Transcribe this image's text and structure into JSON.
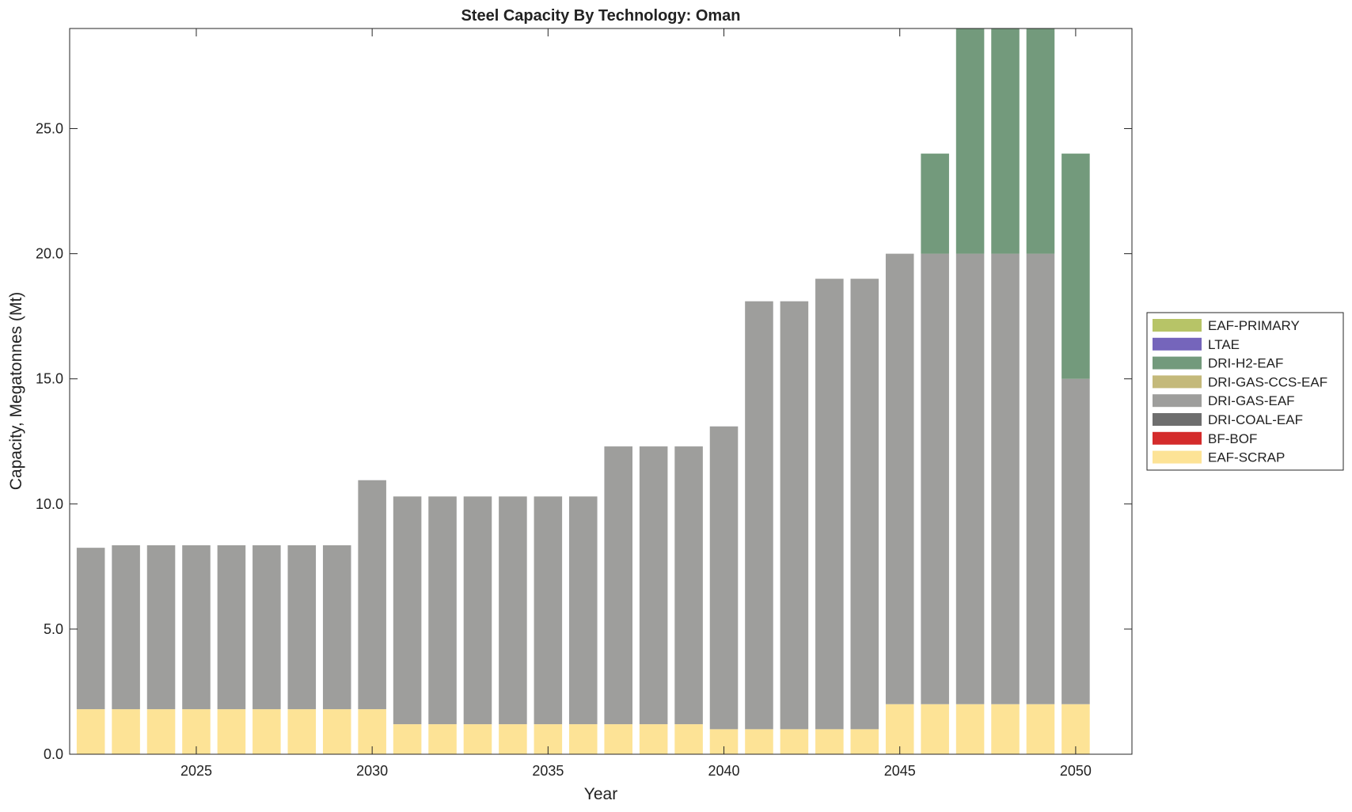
{
  "chart_data": {
    "type": "bar",
    "stacked": true,
    "title": "Steel Capacity By Technology: Oman",
    "xlabel": "Year",
    "ylabel": "Capacity, Megatonnes (Mt)",
    "xlim": [
      2021.4,
      2051.6
    ],
    "ylim": [
      0,
      29
    ],
    "x_ticks": [
      2025,
      2030,
      2035,
      2040,
      2045,
      2050
    ],
    "x_tick_labels": [
      "2025",
      "2030",
      "2035",
      "2040",
      "2045",
      "2050"
    ],
    "y_ticks": [
      0,
      5,
      10,
      15,
      20,
      25
    ],
    "y_tick_labels": [
      "0.0",
      "5.0",
      "10.0",
      "15.0",
      "20.0",
      "25.0"
    ],
    "grid": false,
    "legend_position": "right",
    "categories": [
      2022,
      2023,
      2024,
      2025,
      2026,
      2027,
      2028,
      2029,
      2030,
      2031,
      2032,
      2033,
      2034,
      2035,
      2036,
      2037,
      2038,
      2039,
      2040,
      2041,
      2042,
      2043,
      2044,
      2045,
      2046,
      2047,
      2048,
      2049,
      2050
    ],
    "series": [
      {
        "name": "EAF-SCRAP",
        "color": "#fde396",
        "values": [
          1.8,
          1.8,
          1.8,
          1.8,
          1.8,
          1.8,
          1.8,
          1.8,
          1.8,
          1.2,
          1.2,
          1.2,
          1.2,
          1.2,
          1.2,
          1.2,
          1.2,
          1.2,
          1.0,
          1.0,
          1.0,
          1.0,
          1.0,
          2.0,
          2.0,
          2.0,
          2.0,
          2.0,
          2.0
        ]
      },
      {
        "name": "BF-BOF",
        "color": "#d42b2b",
        "values": [
          0,
          0,
          0,
          0,
          0,
          0,
          0,
          0,
          0,
          0,
          0,
          0,
          0,
          0,
          0,
          0,
          0,
          0,
          0,
          0,
          0,
          0,
          0,
          0,
          0,
          0,
          0,
          0,
          0
        ]
      },
      {
        "name": "DRI-COAL-EAF",
        "color": "#6e6e6e",
        "values": [
          0,
          0,
          0,
          0,
          0,
          0,
          0,
          0,
          0,
          0,
          0,
          0,
          0,
          0,
          0,
          0,
          0,
          0,
          0,
          0,
          0,
          0,
          0,
          0,
          0,
          0,
          0,
          0,
          0
        ]
      },
      {
        "name": "DRI-GAS-EAF",
        "color": "#9e9e9c",
        "values": [
          6.45,
          6.55,
          6.55,
          6.55,
          6.55,
          6.55,
          6.55,
          6.55,
          9.15,
          9.1,
          9.1,
          9.1,
          9.1,
          9.1,
          9.1,
          11.1,
          11.1,
          11.1,
          12.1,
          17.1,
          17.1,
          18.0,
          18.0,
          18.0,
          18.0,
          18.0,
          18.0,
          18.0,
          13.0
        ]
      },
      {
        "name": "DRI-GAS-CCS-EAF",
        "color": "#c4b97a",
        "values": [
          0,
          0,
          0,
          0,
          0,
          0,
          0,
          0,
          0,
          0,
          0,
          0,
          0,
          0,
          0,
          0,
          0,
          0,
          0,
          0,
          0,
          0,
          0,
          0,
          0,
          0,
          0,
          0,
          0
        ]
      },
      {
        "name": "DRI-H2-EAF",
        "color": "#739a7c",
        "values": [
          0,
          0,
          0,
          0,
          0,
          0,
          0,
          0,
          0,
          0,
          0,
          0,
          0,
          0,
          0,
          0,
          0,
          0,
          0,
          0,
          0,
          0,
          0,
          0,
          4.0,
          9.0,
          9.0,
          9.0,
          9.0
        ]
      },
      {
        "name": "LTAE",
        "color": "#7565bb",
        "values": [
          0,
          0,
          0,
          0,
          0,
          0,
          0,
          0,
          0,
          0,
          0,
          0,
          0,
          0,
          0,
          0,
          0,
          0,
          0,
          0,
          0,
          0,
          0,
          0,
          0,
          0,
          0,
          0,
          0
        ]
      },
      {
        "name": "EAF-PRIMARY",
        "color": "#b7c467",
        "values": [
          0,
          0,
          0,
          0,
          0,
          0,
          0,
          0,
          0,
          0,
          0,
          0,
          0,
          0,
          0,
          0,
          0,
          0,
          0,
          0,
          0,
          0,
          0,
          0,
          0,
          0,
          0,
          0,
          0
        ]
      }
    ],
    "legend_order": [
      "EAF-PRIMARY",
      "LTAE",
      "DRI-H2-EAF",
      "DRI-GAS-CCS-EAF",
      "DRI-GAS-EAF",
      "DRI-COAL-EAF",
      "BF-BOF",
      "EAF-SCRAP"
    ]
  }
}
